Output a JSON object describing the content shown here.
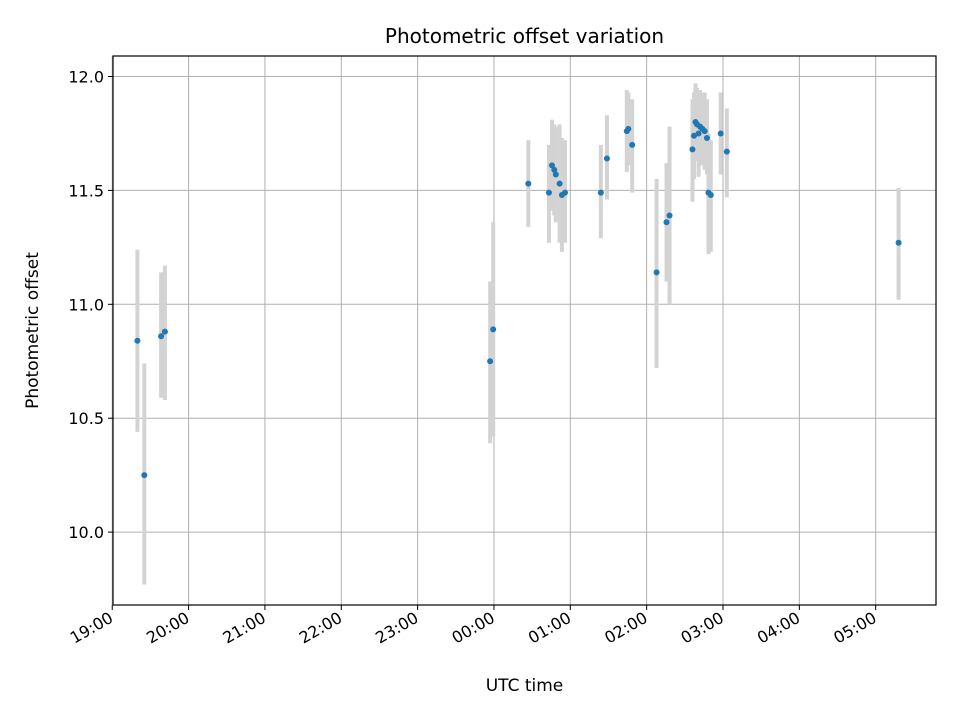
{
  "chart_data": {
    "type": "scatter",
    "title": "Photometric offset variation",
    "xlabel": "UTC time",
    "ylabel": "Photometric offset",
    "x_unit": "hours",
    "xlim": [
      -4.99,
      5.79
    ],
    "ylim": [
      9.68,
      12.09
    ],
    "grid": true,
    "x_ticks": [
      {
        "value": -5,
        "label": "19:00"
      },
      {
        "value": -4,
        "label": "20:00"
      },
      {
        "value": -3,
        "label": "21:00"
      },
      {
        "value": -2,
        "label": "22:00"
      },
      {
        "value": -1,
        "label": "23:00"
      },
      {
        "value": 0,
        "label": "00:00"
      },
      {
        "value": 1,
        "label": "01:00"
      },
      {
        "value": 2,
        "label": "02:00"
      },
      {
        "value": 3,
        "label": "03:00"
      },
      {
        "value": 4,
        "label": "04:00"
      },
      {
        "value": 5,
        "label": "05:00"
      }
    ],
    "y_ticks": [
      {
        "value": 10.0,
        "label": "10.0"
      },
      {
        "value": 10.5,
        "label": "10.5"
      },
      {
        "value": 11.0,
        "label": "11.0"
      },
      {
        "value": 11.5,
        "label": "11.5"
      },
      {
        "value": 12.0,
        "label": "12.0"
      }
    ],
    "marker_color": "#1f77b4",
    "errorbar_color": "#d3d3d3",
    "points": [
      {
        "x": -4.67,
        "y": 10.84,
        "lo": 10.44,
        "hi": 11.24
      },
      {
        "x": -4.58,
        "y": 10.25,
        "lo": 9.77,
        "hi": 10.74
      },
      {
        "x": -4.36,
        "y": 10.86,
        "lo": 10.59,
        "hi": 11.14
      },
      {
        "x": -4.31,
        "y": 10.88,
        "lo": 10.58,
        "hi": 11.17
      },
      {
        "x": -0.05,
        "y": 10.75,
        "lo": 10.39,
        "hi": 11.1
      },
      {
        "x": -0.01,
        "y": 10.89,
        "lo": 10.42,
        "hi": 11.36
      },
      {
        "x": 0.45,
        "y": 11.53,
        "lo": 11.34,
        "hi": 11.72
      },
      {
        "x": 0.72,
        "y": 11.49,
        "lo": 11.27,
        "hi": 11.7
      },
      {
        "x": 0.76,
        "y": 11.61,
        "lo": 11.41,
        "hi": 11.81
      },
      {
        "x": 0.79,
        "y": 11.59,
        "lo": 11.39,
        "hi": 11.79
      },
      {
        "x": 0.81,
        "y": 11.57,
        "lo": 11.36,
        "hi": 11.78
      },
      {
        "x": 0.86,
        "y": 11.53,
        "lo": 11.27,
        "hi": 11.79
      },
      {
        "x": 0.89,
        "y": 11.48,
        "lo": 11.23,
        "hi": 11.73
      },
      {
        "x": 0.93,
        "y": 11.49,
        "lo": 11.27,
        "hi": 11.72
      },
      {
        "x": 1.4,
        "y": 11.49,
        "lo": 11.29,
        "hi": 11.7
      },
      {
        "x": 1.48,
        "y": 11.64,
        "lo": 11.46,
        "hi": 11.83
      },
      {
        "x": 1.74,
        "y": 11.76,
        "lo": 11.58,
        "hi": 11.94
      },
      {
        "x": 1.76,
        "y": 11.77,
        "lo": 11.61,
        "hi": 11.93
      },
      {
        "x": 1.81,
        "y": 11.7,
        "lo": 11.49,
        "hi": 11.9
      },
      {
        "x": 2.13,
        "y": 11.14,
        "lo": 10.72,
        "hi": 11.55
      },
      {
        "x": 2.26,
        "y": 11.36,
        "lo": 11.1,
        "hi": 11.62
      },
      {
        "x": 2.3,
        "y": 11.39,
        "lo": 11.0,
        "hi": 11.78
      },
      {
        "x": 2.6,
        "y": 11.68,
        "lo": 11.45,
        "hi": 11.9
      },
      {
        "x": 2.62,
        "y": 11.74,
        "lo": 11.55,
        "hi": 11.93
      },
      {
        "x": 2.64,
        "y": 11.8,
        "lo": 11.63,
        "hi": 11.97
      },
      {
        "x": 2.66,
        "y": 11.79,
        "lo": 11.63,
        "hi": 11.95
      },
      {
        "x": 2.68,
        "y": 11.75,
        "lo": 11.56,
        "hi": 11.94
      },
      {
        "x": 2.7,
        "y": 11.78,
        "lo": 11.62,
        "hi": 11.94
      },
      {
        "x": 2.73,
        "y": 11.77,
        "lo": 11.61,
        "hi": 11.93
      },
      {
        "x": 2.76,
        "y": 11.76,
        "lo": 11.59,
        "hi": 11.93
      },
      {
        "x": 2.79,
        "y": 11.73,
        "lo": 11.57,
        "hi": 11.9
      },
      {
        "x": 2.81,
        "y": 11.49,
        "lo": 11.22,
        "hi": 11.75
      },
      {
        "x": 2.84,
        "y": 11.48,
        "lo": 11.23,
        "hi": 11.72
      },
      {
        "x": 2.97,
        "y": 11.75,
        "lo": 11.57,
        "hi": 11.93
      },
      {
        "x": 3.05,
        "y": 11.67,
        "lo": 11.47,
        "hi": 11.86
      },
      {
        "x": 5.3,
        "y": 11.27,
        "lo": 11.02,
        "hi": 11.51
      }
    ]
  }
}
